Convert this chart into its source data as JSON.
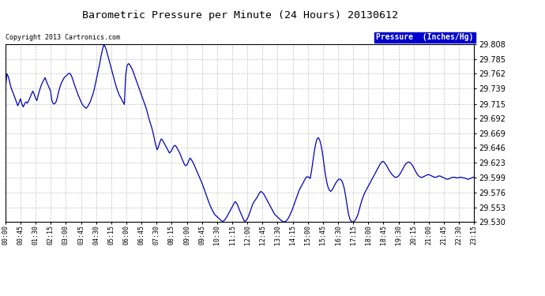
{
  "title": "Barometric Pressure per Minute (24 Hours) 20130612",
  "copyright": "Copyright 2013 Cartronics.com",
  "legend_label": "Pressure  (Inches/Hg)",
  "line_color": "#0000bb",
  "bg_color": "#ffffff",
  "plot_bg_color": "#ffffff",
  "grid_color": "#aaaaaa",
  "ylim": [
    29.53,
    29.808
  ],
  "yticks": [
    29.53,
    29.553,
    29.576,
    29.599,
    29.623,
    29.646,
    29.669,
    29.692,
    29.715,
    29.739,
    29.762,
    29.785,
    29.808
  ],
  "xtick_labels": [
    "00:00",
    "00:45",
    "01:30",
    "02:15",
    "03:00",
    "03:45",
    "04:30",
    "05:15",
    "06:00",
    "06:45",
    "07:30",
    "08:15",
    "09:00",
    "09:45",
    "10:30",
    "11:15",
    "12:00",
    "12:45",
    "13:30",
    "14:15",
    "15:00",
    "15:45",
    "16:30",
    "17:15",
    "18:00",
    "18:45",
    "19:30",
    "20:15",
    "21:00",
    "21:45",
    "22:30",
    "23:15"
  ],
  "pressure_values": [
    29.739,
    29.762,
    29.758,
    29.75,
    29.741,
    29.735,
    29.73,
    29.724,
    29.718,
    29.712,
    29.717,
    29.723,
    29.715,
    29.71,
    29.715,
    29.718,
    29.716,
    29.72,
    29.725,
    29.73,
    29.735,
    29.73,
    29.724,
    29.72,
    29.729,
    29.736,
    29.743,
    29.748,
    29.752,
    29.756,
    29.75,
    29.745,
    29.74,
    29.735,
    29.72,
    29.715,
    29.715,
    29.718,
    29.725,
    29.735,
    29.742,
    29.748,
    29.752,
    29.756,
    29.758,
    29.76,
    29.762,
    29.763,
    29.76,
    29.755,
    29.748,
    29.742,
    29.736,
    29.73,
    29.725,
    29.72,
    29.715,
    29.712,
    29.71,
    29.708,
    29.71,
    29.714,
    29.718,
    29.724,
    29.73,
    29.738,
    29.748,
    29.758,
    29.768,
    29.778,
    29.79,
    29.8,
    29.808,
    29.804,
    29.798,
    29.79,
    29.782,
    29.774,
    29.766,
    29.758,
    29.75,
    29.742,
    29.736,
    29.73,
    29.726,
    29.722,
    29.718,
    29.714,
    29.76,
    29.775,
    29.778,
    29.776,
    29.772,
    29.768,
    29.762,
    29.756,
    29.75,
    29.744,
    29.738,
    29.732,
    29.726,
    29.72,
    29.714,
    29.708,
    29.7,
    29.692,
    29.685,
    29.678,
    29.67,
    29.66,
    29.65,
    29.643,
    29.648,
    29.655,
    29.66,
    29.658,
    29.654,
    29.65,
    29.646,
    29.642,
    29.638,
    29.64,
    29.644,
    29.648,
    29.65,
    29.648,
    29.644,
    29.64,
    29.636,
    29.63,
    29.625,
    29.62,
    29.618,
    29.62,
    29.625,
    29.63,
    29.628,
    29.624,
    29.62,
    29.615,
    29.61,
    29.605,
    29.6,
    29.595,
    29.59,
    29.584,
    29.578,
    29.572,
    29.566,
    29.56,
    29.555,
    29.55,
    29.546,
    29.542,
    29.54,
    29.538,
    29.536,
    29.534,
    29.532,
    29.531,
    29.532,
    29.535,
    29.538,
    29.542,
    29.546,
    29.55,
    29.554,
    29.558,
    29.562,
    29.56,
    29.556,
    29.55,
    29.545,
    29.54,
    29.535,
    29.531,
    29.532,
    29.535,
    29.54,
    29.546,
    29.552,
    29.558,
    29.562,
    29.565,
    29.568,
    29.572,
    29.576,
    29.578,
    29.576,
    29.574,
    29.57,
    29.566,
    29.562,
    29.558,
    29.554,
    29.55,
    29.546,
    29.542,
    29.54,
    29.538,
    29.536,
    29.534,
    29.532,
    29.531,
    29.53,
    29.531,
    29.533,
    29.536,
    29.54,
    29.545,
    29.55,
    29.556,
    29.562,
    29.568,
    29.574,
    29.58,
    29.584,
    29.588,
    29.592,
    29.596,
    29.6,
    29.601,
    29.6,
    29.598,
    29.61,
    29.625,
    29.64,
    29.652,
    29.66,
    29.662,
    29.658,
    29.65,
    29.638,
    29.622,
    29.606,
    29.594,
    29.585,
    29.58,
    29.578,
    29.58,
    29.584,
    29.588,
    29.592,
    29.595,
    29.597,
    29.597,
    29.595,
    29.59,
    29.582,
    29.57,
    29.556,
    29.543,
    29.535,
    29.531,
    29.53,
    29.531,
    29.533,
    29.537,
    29.542,
    29.55,
    29.558,
    29.565,
    29.571,
    29.576,
    29.58,
    29.584,
    29.588,
    29.592,
    29.596,
    29.6,
    29.604,
    29.608,
    29.612,
    29.616,
    29.62,
    29.623,
    29.625,
    29.624,
    29.621,
    29.618,
    29.614,
    29.61,
    29.607,
    29.604,
    29.602,
    29.6,
    29.6,
    29.601,
    29.603,
    29.606,
    29.61,
    29.614,
    29.618,
    29.621,
    29.623,
    29.624,
    29.623,
    29.621,
    29.618,
    29.614,
    29.61,
    29.606,
    29.603,
    29.601,
    29.6,
    29.6,
    29.601,
    29.602,
    29.603,
    29.604,
    29.604,
    29.603,
    29.602,
    29.601,
    29.6,
    29.6,
    29.601,
    29.602,
    29.602,
    29.601,
    29.6,
    29.599,
    29.598,
    29.597,
    29.597,
    29.598,
    29.599,
    29.6,
    29.6,
    29.6,
    29.599,
    29.599,
    29.6,
    29.6,
    29.6,
    29.599,
    29.599,
    29.598,
    29.597,
    29.597,
    29.598,
    29.599,
    29.6,
    29.6
  ]
}
